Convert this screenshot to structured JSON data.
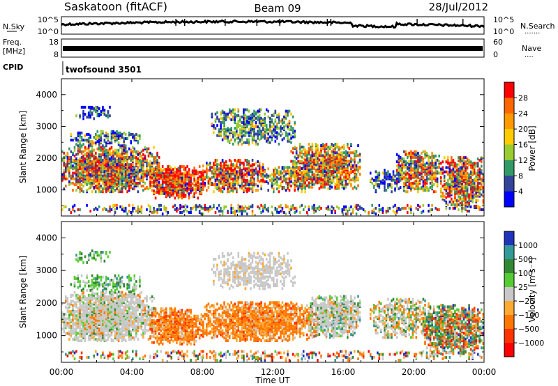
{
  "header": {
    "title": "Saskatoon (fitACF)",
    "beam": "Beam 09",
    "date": "28/Jul/2012"
  },
  "top_panels": {
    "nsky_label": "N.Sky",
    "nsearch_label": "N.Search",
    "nsearch_dots": "·······",
    "nsky_ticks": [
      "10^5",
      "10^0"
    ],
    "nsearch_ticks": [
      "10^5",
      "10^0"
    ],
    "freq_label": "Freq.",
    "freq_unit": "[MHz]",
    "freq_ticks": [
      "18",
      "8"
    ],
    "nave_label": "Nave",
    "nave_dots": "····",
    "nave_ticks": [
      "60",
      "0"
    ],
    "cpid_label": "CPID",
    "cpid_value": "twofsound 3501"
  },
  "x_axis": {
    "label": "Time UT",
    "ticks": [
      "00:00",
      "04:00",
      "08:00",
      "12:00",
      "16:00",
      "20:00",
      "00:00"
    ]
  },
  "power_colorbar": {
    "label": "Power [dB]",
    "ticks": [
      "28",
      "24",
      "20",
      "16",
      "12",
      "8",
      "4"
    ],
    "colors": [
      "#ff0000",
      "#ff6600",
      "#ff9900",
      "#ffcc00",
      "#99cc33",
      "#339966",
      "#334499",
      "#0000ff"
    ]
  },
  "velocity_colorbar": {
    "label": "Velocity [m s⁻¹]",
    "ticks": [
      "1000",
      "500",
      "100",
      "25",
      "−25",
      "−100",
      "−500",
      "−1000"
    ],
    "colors": [
      "#2233bb",
      "#339999",
      "#338833",
      "#55cc33",
      "#c8c8c8",
      "#ffaa33",
      "#ff7700",
      "#ff3300",
      "#ff0000"
    ]
  },
  "chart_data": [
    {
      "type": "line",
      "title": "N.Sky / N.Search",
      "x": [
        "00:00",
        "04:00",
        "08:00",
        "12:00",
        "16:00",
        "20:00",
        "00:00"
      ],
      "ylabel": "N.Sky",
      "y2label": "N.Search",
      "yscale": "log",
      "ylim": [
        1,
        100000
      ]
    },
    {
      "type": "line",
      "title": "Freq. / Nave",
      "x": [
        "00:00",
        "04:00",
        "08:00",
        "12:00",
        "16:00",
        "20:00",
        "00:00"
      ],
      "ylabel": "Freq. [MHz]",
      "ylim": [
        8,
        18
      ],
      "y2label": "Nave",
      "y2lim": [
        0,
        60
      ]
    },
    {
      "type": "heatmap",
      "title": "Power",
      "xlabel": "Time UT",
      "ylabel": "Slant Range [km]",
      "xlim": [
        "00:00",
        "00:00"
      ],
      "ylim": [
        180,
        4500
      ],
      "yticks": [
        1000,
        2000,
        3000,
        4000
      ],
      "colorbar_label": "Power [dB]",
      "colorbar_ticks": [
        4,
        8,
        12,
        16,
        20,
        24,
        28
      ],
      "regions": [
        {
          "t_start": 0.0,
          "t_end": 5.5,
          "range_low": 900,
          "range_high": 2200,
          "level": "mixed 12-28 dB"
        },
        {
          "t_start": 5.0,
          "t_end": 8.0,
          "range_low": 800,
          "range_high": 1600,
          "level": "strong 24-28 dB"
        },
        {
          "t_start": 8.5,
          "t_end": 13.0,
          "range_low": 2500,
          "range_high": 3500,
          "level": "weak 8-16 dB"
        },
        {
          "t_start": 13.0,
          "t_end": 17.0,
          "range_low": 1000,
          "range_high": 2300,
          "level": "mixed 12-28 dB"
        },
        {
          "t_start": 19.0,
          "t_end": 24.0,
          "range_low": 500,
          "range_high": 2100,
          "level": "mixed 8-28 dB"
        }
      ]
    },
    {
      "type": "heatmap",
      "title": "Velocity",
      "xlabel": "Time UT",
      "ylabel": "Slant Range [km]",
      "xlim": [
        "00:00",
        "00:00"
      ],
      "ylim": [
        180,
        4500
      ],
      "yticks": [
        1000,
        2000,
        3000,
        4000
      ],
      "colorbar_label": "Velocity [m s⁻¹]",
      "colorbar_ticks": [
        1000,
        500,
        100,
        25,
        -25,
        -100,
        -500,
        -1000
      ],
      "regions": [
        {
          "t_start": 0.0,
          "t_end": 5.0,
          "range_low": 900,
          "range_high": 2200,
          "level": "near zero (±25)"
        },
        {
          "t_start": 5.0,
          "t_end": 14.0,
          "range_low": 800,
          "range_high": 2000,
          "level": "-100 to -500 m/s"
        },
        {
          "t_start": 8.5,
          "t_end": 13.0,
          "range_low": 2500,
          "range_high": 3500,
          "level": "near zero (±25)"
        },
        {
          "t_start": 14.5,
          "t_end": 16.5,
          "range_low": 1000,
          "range_high": 2000,
          "level": "near zero (±25)"
        },
        {
          "t_start": 20.5,
          "t_end": 24.0,
          "range_low": 400,
          "range_high": 1800,
          "level": "-100 to -1000 m/s"
        }
      ]
    }
  ]
}
